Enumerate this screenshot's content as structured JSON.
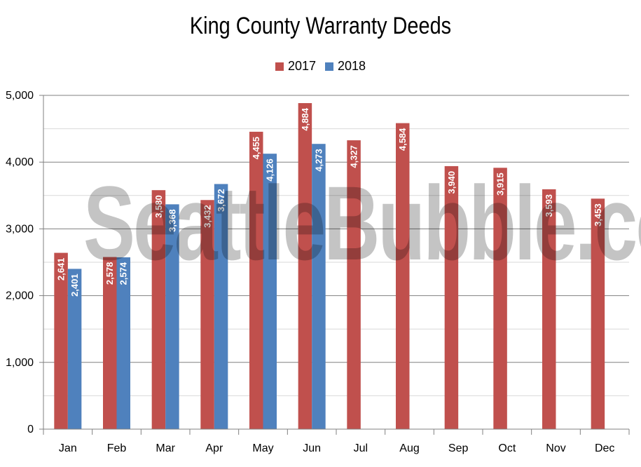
{
  "chart_data": {
    "type": "bar",
    "title": "King County Warranty Deeds",
    "categories": [
      "Jan",
      "Feb",
      "Mar",
      "Apr",
      "May",
      "Jun",
      "Jul",
      "Aug",
      "Sep",
      "Oct",
      "Nov",
      "Dec"
    ],
    "series": [
      {
        "name": "2017",
        "color": "#c0504d",
        "values": [
          2641,
          2578,
          3580,
          3432,
          4455,
          4884,
          4327,
          4584,
          3940,
          3915,
          3593,
          3453
        ],
        "labels": [
          "2,641",
          "2,578",
          "3,580",
          "3,432",
          "4,455",
          "4,884",
          "4,327",
          "4,584",
          "3,940",
          "3,915",
          "3,593",
          "3,453"
        ]
      },
      {
        "name": "2018",
        "color": "#4f81bd",
        "values": [
          2401,
          2574,
          3368,
          3672,
          4126,
          4273,
          null,
          null,
          null,
          null,
          null,
          null
        ],
        "labels": [
          "2,401",
          "2,574",
          "3,368",
          "3,672",
          "4,126",
          "4,273",
          "",
          "",
          "",
          "",
          "",
          ""
        ]
      }
    ],
    "ylim": [
      0,
      5000
    ],
    "yticks": [
      0,
      1000,
      2000,
      3000,
      4000,
      5000
    ],
    "ytick_labels": [
      "0",
      "1,000",
      "2,000",
      "3,000",
      "4,000",
      "5,000"
    ],
    "xlabel": "",
    "ylabel": "",
    "grid": true,
    "legend": "top-center"
  },
  "watermark": "SeattleBubble.com"
}
